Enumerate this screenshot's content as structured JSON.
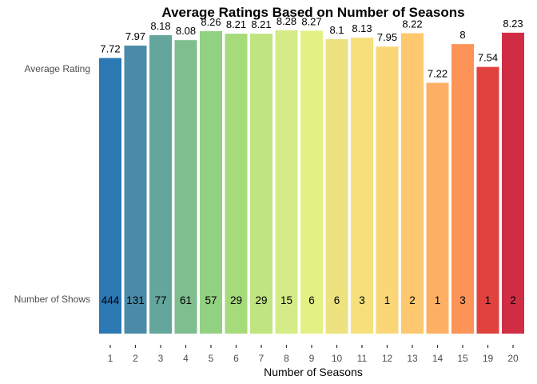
{
  "chart_data": {
    "type": "bar",
    "title": "Average Ratings Based on Number of Seasons",
    "xlabel": "Number of Seasons",
    "row_labels": [
      "Average Rating",
      "Number of Shows"
    ],
    "categories": [
      "1",
      "2",
      "3",
      "4",
      "5",
      "6",
      "7",
      "8",
      "9",
      "10",
      "11",
      "12",
      "13",
      "14",
      "15",
      "19",
      "20"
    ],
    "series": [
      {
        "name": "Average Rating",
        "values": [
          7.72,
          7.97,
          8.18,
          8.08,
          8.26,
          8.21,
          8.21,
          8.28,
          8.27,
          8.1,
          8.13,
          7.95,
          8.22,
          7.22,
          8,
          7.54,
          8.23
        ]
      },
      {
        "name": "Number of Shows",
        "values": [
          444,
          131,
          77,
          61,
          57,
          29,
          29,
          15,
          6,
          6,
          3,
          1,
          2,
          1,
          3,
          1,
          2
        ]
      }
    ],
    "rating_labels": [
      "7.72",
      "7.97",
      "8.18",
      "8.08",
      "8.26",
      "8.21",
      "8.21",
      "8.28",
      "8.27",
      "8.1",
      "8.13",
      "7.95",
      "8.22",
      "7.22",
      "8",
      "7.54",
      "8.23"
    ],
    "count_labels": [
      "444",
      "131",
      "77",
      "61",
      "57",
      "29",
      "29",
      "15",
      "6",
      "6",
      "3",
      "1",
      "2",
      "1",
      "3",
      "1",
      "2"
    ],
    "colors": [
      "#2b78b4",
      "#4a8ba8",
      "#65a69c",
      "#7ebe8f",
      "#93d182",
      "#a6db7c",
      "#bfe480",
      "#d3ec87",
      "#e3f084",
      "#ede27f",
      "#f5e07c",
      "#fad679",
      "#fdc86e",
      "#fdb064",
      "#fc9357",
      "#e0423e",
      "#d02d44"
    ],
    "legend": "none",
    "grid": false
  }
}
